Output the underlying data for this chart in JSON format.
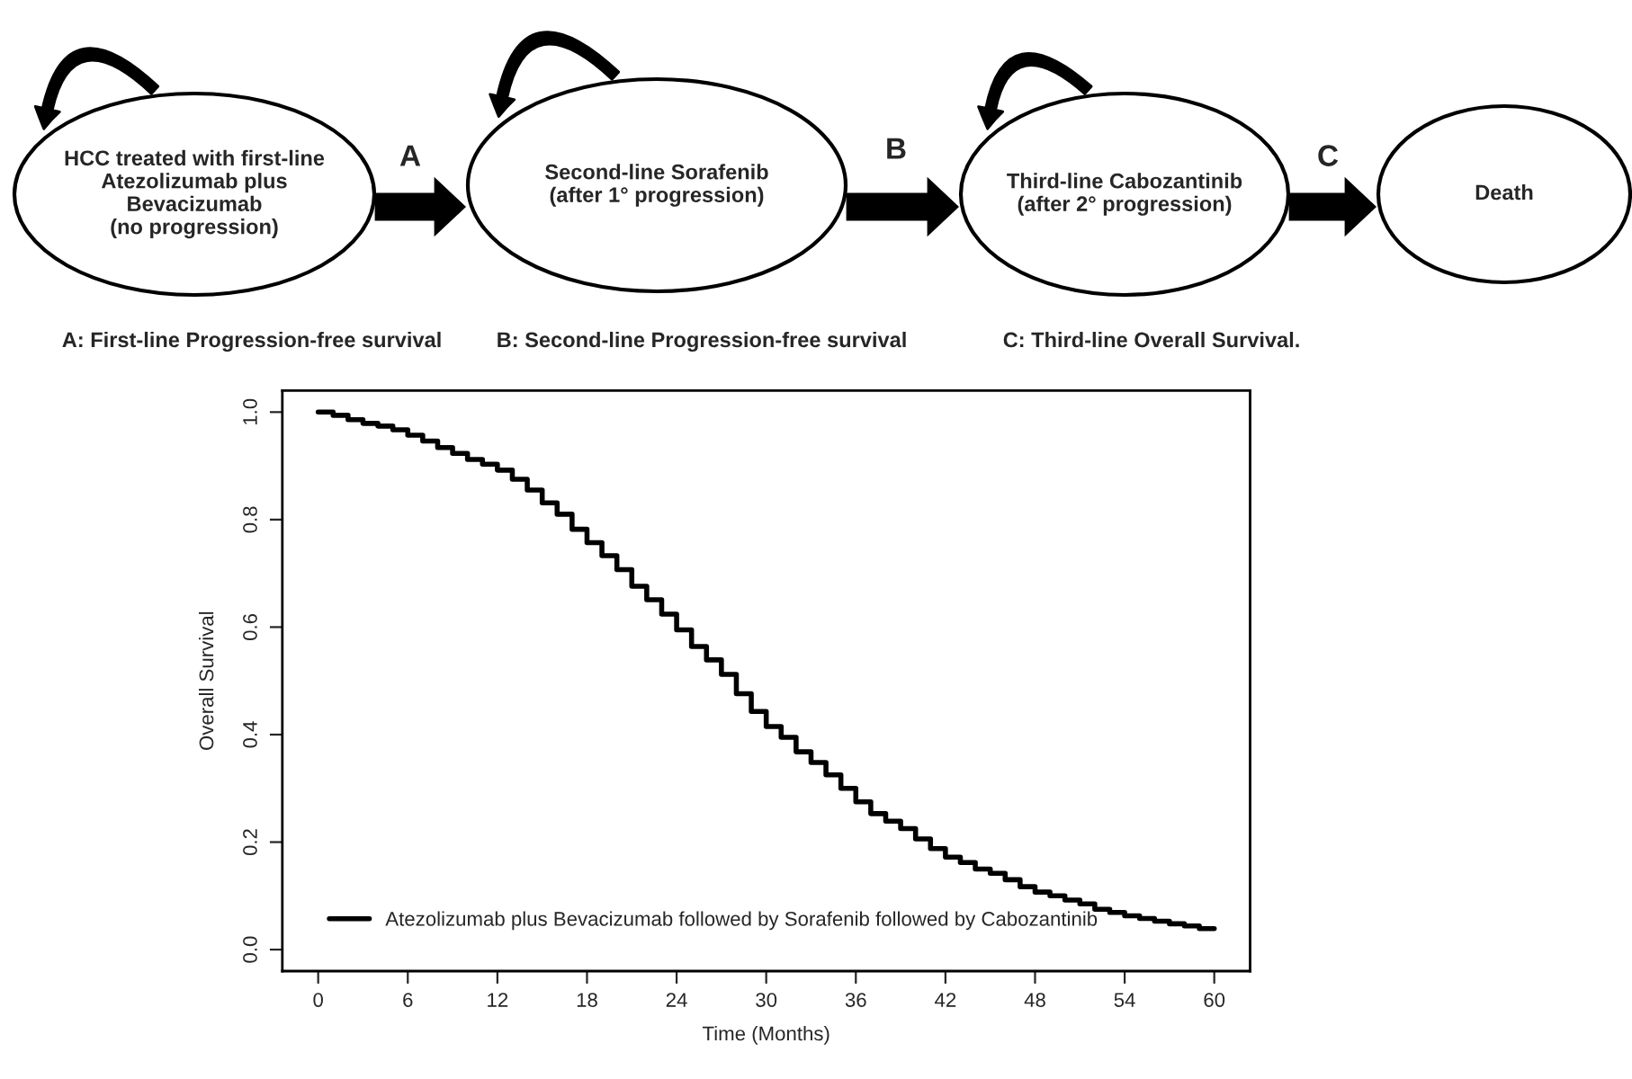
{
  "chart_data": {
    "type": "step",
    "xlabel": "Time (Months)",
    "ylabel": "Overall Survival",
    "x": [
      0,
      1,
      2,
      3,
      4,
      5,
      6,
      7,
      8,
      9,
      10,
      11,
      12,
      13,
      14,
      15,
      16,
      17,
      18,
      19,
      20,
      21,
      22,
      23,
      24,
      25,
      26,
      27,
      28,
      29,
      30,
      31,
      32,
      33,
      34,
      35,
      36,
      37,
      38,
      39,
      40,
      41,
      42,
      43,
      44,
      45,
      46,
      47,
      48,
      49,
      50,
      51,
      52,
      53,
      54,
      55,
      56,
      57,
      58,
      59,
      60
    ],
    "series": [
      {
        "name": "Atezolizumab plus Bevacizumab followed by Sorafenib followed by Cabozantinib",
        "color": "#000000",
        "values": [
          1.0,
          0.994,
          0.986,
          0.979,
          0.974,
          0.967,
          0.957,
          0.946,
          0.934,
          0.923,
          0.912,
          0.903,
          0.892,
          0.875,
          0.855,
          0.831,
          0.81,
          0.782,
          0.757,
          0.733,
          0.707,
          0.676,
          0.651,
          0.624,
          0.595,
          0.564,
          0.539,
          0.512,
          0.476,
          0.443,
          0.415,
          0.395,
          0.368,
          0.348,
          0.325,
          0.3,
          0.275,
          0.253,
          0.239,
          0.225,
          0.206,
          0.188,
          0.172,
          0.162,
          0.15,
          0.142,
          0.13,
          0.117,
          0.107,
          0.1,
          0.092,
          0.085,
          0.075,
          0.069,
          0.063,
          0.058,
          0.053,
          0.048,
          0.044,
          0.039,
          0.039
        ]
      }
    ],
    "xlim": [
      -2.4,
      62.4
    ],
    "ylim": [
      -0.04,
      1.04
    ],
    "xticks": [
      0,
      6,
      12,
      18,
      24,
      30,
      36,
      42,
      48,
      54,
      60
    ],
    "yticks": [
      {
        "value": 0,
        "label": "0.0"
      },
      {
        "value": 0.2,
        "label": "0.2"
      },
      {
        "value": 0.4,
        "label": "0.4"
      },
      {
        "value": 0.6,
        "label": "0.6"
      },
      {
        "value": 0.8,
        "label": "0.8"
      },
      {
        "value": 1,
        "label": "1.0"
      }
    ],
    "grid": false,
    "legend": "bottom left",
    "line_style": "solid",
    "marker": "none",
    "annotations": [
      "HCC treated with first-line\nAtezolizumab plus\nBevacizumab\n(no progression)",
      "Second-line Sorafenib\n(after 1° progression)",
      "Third-line Cabozantinib\n(after 2° progression)",
      "Death",
      "A",
      "B",
      "C",
      "A: First-line Progression-free survival",
      "B: Second-line Progression-free survival",
      "C: Third-line Overall Survival."
    ]
  }
}
